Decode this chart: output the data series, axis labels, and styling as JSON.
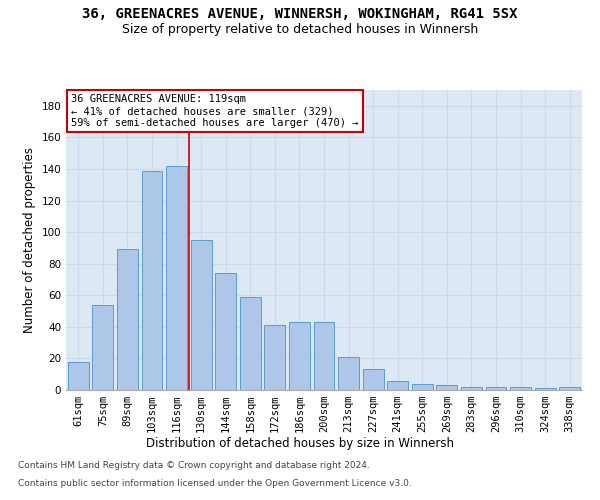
{
  "title_line1": "36, GREENACRES AVENUE, WINNERSH, WOKINGHAM, RG41 5SX",
  "title_line2": "Size of property relative to detached houses in Winnersh",
  "xlabel": "Distribution of detached houses by size in Winnersh",
  "ylabel": "Number of detached properties",
  "categories": [
    "61sqm",
    "75sqm",
    "89sqm",
    "103sqm",
    "116sqm",
    "130sqm",
    "144sqm",
    "158sqm",
    "172sqm",
    "186sqm",
    "200sqm",
    "213sqm",
    "227sqm",
    "241sqm",
    "255sqm",
    "269sqm",
    "283sqm",
    "296sqm",
    "310sqm",
    "324sqm",
    "338sqm"
  ],
  "values": [
    18,
    54,
    89,
    139,
    142,
    95,
    74,
    59,
    41,
    43,
    43,
    21,
    13,
    6,
    4,
    3,
    2,
    2,
    2,
    1,
    2
  ],
  "bar_color": "#aec6e8",
  "bar_edge_color": "#5b9bd5",
  "annotation_text_line1": "36 GREENACRES AVENUE: 119sqm",
  "annotation_text_line2": "← 41% of detached houses are smaller (329)",
  "annotation_text_line3": "59% of semi-detached houses are larger (470) →",
  "annotation_box_color": "#ffffff",
  "annotation_box_edge": "#cc0000",
  "vline_color": "#cc0000",
  "vline_x": 4.5,
  "ylim": [
    0,
    190
  ],
  "yticks": [
    0,
    20,
    40,
    60,
    80,
    100,
    120,
    140,
    160,
    180
  ],
  "grid_color": "#d0d8e8",
  "bg_color": "#dde8f5",
  "footer_line1": "Contains HM Land Registry data © Crown copyright and database right 2024.",
  "footer_line2": "Contains public sector information licensed under the Open Government Licence v3.0.",
  "title_fontsize": 10,
  "subtitle_fontsize": 9,
  "axis_label_fontsize": 8.5,
  "tick_fontsize": 7.5,
  "footer_fontsize": 6.5
}
